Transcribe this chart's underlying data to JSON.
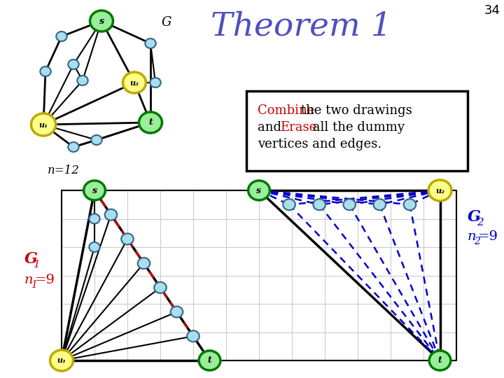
{
  "title": "Theorem 1",
  "slide_number": "34",
  "background_color": "#ffffff",
  "text_color_title": "#5050c0",
  "green_fill": "#99ee99",
  "green_outline": "#007700",
  "yellow_fill": "#ffff88",
  "yellow_outline": "#bbaa00",
  "light_blue_fill": "#aaddee",
  "light_blue_outline": "#336688",
  "grid_color": "#cccccc",
  "red_dashed": "#cc0000",
  "blue_dashed": "#0000cc",
  "G_label": "G",
  "n_label": "n=12",
  "G1_label": "G",
  "G1_sub": "1",
  "n1_label": "n",
  "n1_sub": "1",
  "n1_val": "=9",
  "G2_label": "G",
  "G2_sub": "2",
  "n2_label": "n",
  "n2_sub": "2",
  "n2_val": "=9"
}
